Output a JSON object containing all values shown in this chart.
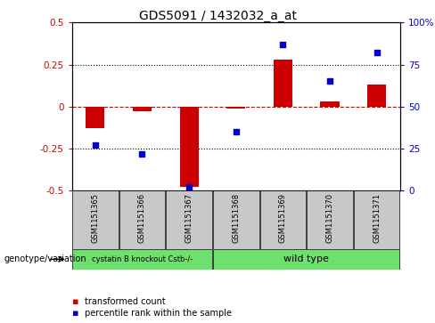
{
  "title": "GDS5091 / 1432032_a_at",
  "samples": [
    "GSM1151365",
    "GSM1151366",
    "GSM1151367",
    "GSM1151368",
    "GSM1151369",
    "GSM1151370",
    "GSM1151371"
  ],
  "transformed_count": [
    -0.13,
    -0.03,
    -0.48,
    -0.01,
    0.28,
    0.03,
    0.13
  ],
  "percentile_rank": [
    27,
    22,
    2,
    35,
    87,
    65,
    82
  ],
  "bar_color": "#cc0000",
  "dot_color": "#0000cc",
  "ylim_left": [
    -0.5,
    0.5
  ],
  "ylim_right": [
    0,
    100
  ],
  "zero_line_color": "#cc0000",
  "group1_label": "cystatin B knockout Cstb-/-",
  "group1_color": "#6ee06e",
  "group2_label": "wild type",
  "group2_color": "#6ee06e",
  "genotype_label": "genotype/variation",
  "legend_red_label": "transformed count",
  "legend_blue_label": "percentile rank within the sample",
  "sample_box_color": "#c8c8c8",
  "background_color": "#ffffff",
  "n_group1": 3,
  "n_group2": 4,
  "bar_width": 0.4
}
